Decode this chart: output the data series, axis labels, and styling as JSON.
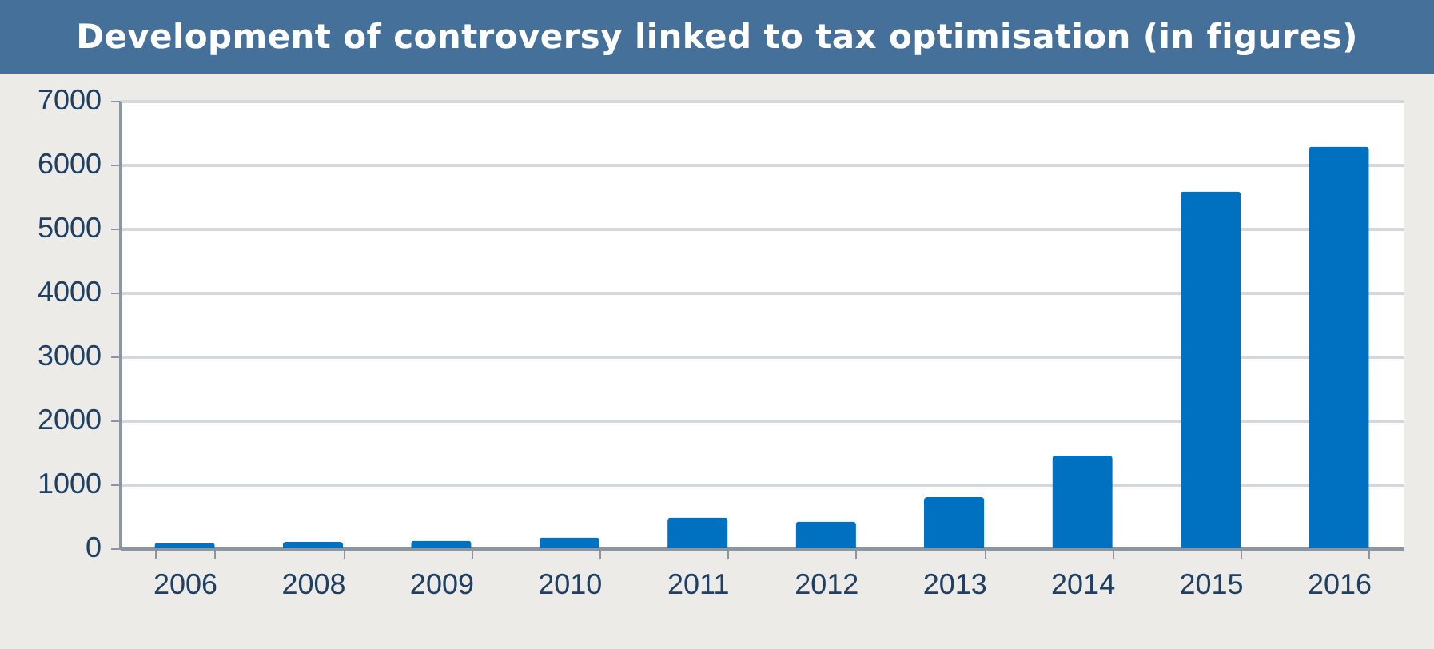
{
  "chart_data": {
    "type": "bar",
    "title": "Development of controversy linked to tax optimisation (in figures)",
    "categories": [
      "2006",
      "2008",
      "2009",
      "2010",
      "2011",
      "2012",
      "2013",
      "2014",
      "2015",
      "2016"
    ],
    "values": [
      80,
      100,
      120,
      170,
      480,
      420,
      800,
      1450,
      5580,
      6280
    ],
    "color": "#0070c0",
    "ylim": [
      0,
      7000
    ],
    "yticks": [
      0,
      1000,
      2000,
      3000,
      4000,
      5000,
      6000,
      7000
    ],
    "grid": "y"
  }
}
